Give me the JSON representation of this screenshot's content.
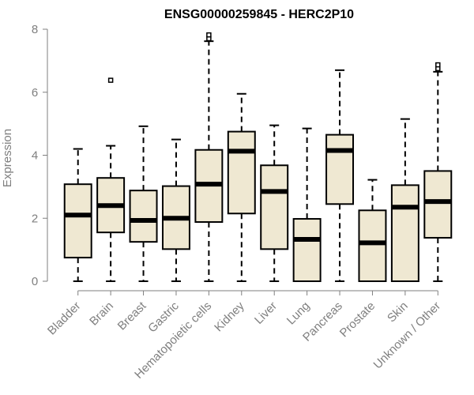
{
  "chart_data": {
    "type": "box",
    "title": "ENSG00000259845 - HERC2P10",
    "ylabel": "Expression",
    "xlabel": "",
    "ylim": [
      0,
      8
    ],
    "yticks": [
      0,
      2,
      4,
      6,
      8
    ],
    "grid": false,
    "legend": "none",
    "colors": {
      "box_fill": "#efe8d2",
      "box_stroke": "#000000",
      "median": "#000000",
      "axis": "#7f7f7f"
    },
    "categories": [
      "Bladder",
      "Brain",
      "Breast",
      "Gastric",
      "Hematopoietic cells",
      "Kidney",
      "Liver",
      "Lung",
      "Pancreas",
      "Prostate",
      "Skin",
      "Unknown / Other"
    ],
    "boxes": [
      {
        "min": 0,
        "q1": 0.75,
        "median": 2.1,
        "q3": 3.08,
        "max": 4.2,
        "outliers": []
      },
      {
        "min": 0,
        "q1": 1.55,
        "median": 2.4,
        "q3": 3.28,
        "max": 4.3,
        "outliers": [
          6.38
        ]
      },
      {
        "min": 0,
        "q1": 1.25,
        "median": 1.93,
        "q3": 2.88,
        "max": 4.92,
        "outliers": []
      },
      {
        "min": 0,
        "q1": 1.02,
        "median": 2.0,
        "q3": 3.02,
        "max": 4.5,
        "outliers": []
      },
      {
        "min": 0,
        "q1": 1.88,
        "median": 3.08,
        "q3": 4.17,
        "max": 7.62,
        "outliers": [
          7.7,
          7.82
        ]
      },
      {
        "min": 0,
        "q1": 2.15,
        "median": 4.13,
        "q3": 4.75,
        "max": 5.95,
        "outliers": []
      },
      {
        "min": 0,
        "q1": 1.02,
        "median": 2.85,
        "q3": 3.68,
        "max": 4.95,
        "outliers": []
      },
      {
        "min": 0,
        "q1": 0.0,
        "median": 1.33,
        "q3": 1.98,
        "max": 4.85,
        "outliers": []
      },
      {
        "min": 0,
        "q1": 2.45,
        "median": 4.15,
        "q3": 4.65,
        "max": 6.7,
        "outliers": []
      },
      {
        "min": 0,
        "q1": 0.0,
        "median": 1.22,
        "q3": 2.25,
        "max": 3.22,
        "outliers": []
      },
      {
        "min": 0,
        "q1": 0.0,
        "median": 2.35,
        "q3": 3.05,
        "max": 5.15,
        "outliers": []
      },
      {
        "min": 0,
        "q1": 1.38,
        "median": 2.53,
        "q3": 3.5,
        "max": 6.65,
        "outliers": [
          6.75,
          6.87
        ]
      }
    ]
  }
}
